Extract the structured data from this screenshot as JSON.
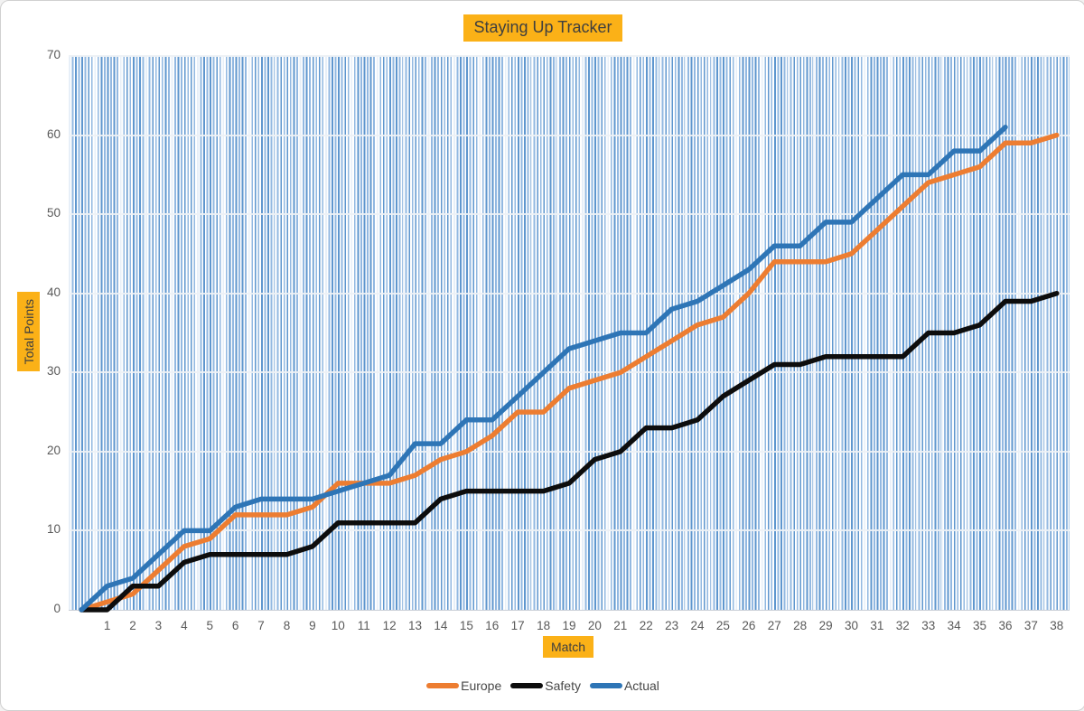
{
  "title": {
    "text": "Staying Up Tracker"
  },
  "colors": {
    "highlight_gold": "#fbb117",
    "title_text": "#3f3f3f",
    "tick_text": "#595959",
    "stripe_dark_blue": "#5e96ce",
    "stripe_light_blue": "#92b8e1",
    "gridline": "#eef1f5",
    "border": "#d0d0d0",
    "europe_orange": "#ED7D31",
    "safety_black": "#0d0d0d",
    "actual_blue": "#2E75B6"
  },
  "legend": {
    "items": [
      {
        "label": "Europe",
        "color": "#ED7D31"
      },
      {
        "label": "Safety",
        "color": "#0d0d0d"
      },
      {
        "label": "Actual",
        "color": "#2E75B6"
      }
    ]
  },
  "chart_data": {
    "type": "line",
    "title": "Staying Up Tracker",
    "xlabel": "Match",
    "ylabel": "Total Points",
    "ylim": [
      0,
      70
    ],
    "y_tick_labels": [
      0,
      10,
      20,
      30,
      40,
      50,
      60,
      70
    ],
    "x_tick_labels": [
      1,
      2,
      3,
      4,
      5,
      6,
      7,
      8,
      9,
      10,
      11,
      12,
      13,
      14,
      15,
      16,
      17,
      18,
      19,
      20,
      21,
      22,
      23,
      24,
      25,
      26,
      27,
      28,
      29,
      30,
      31,
      32,
      33,
      34,
      35,
      36,
      37,
      38
    ],
    "x_categories_note": "series start at an unlabeled match 0 at the left edge of the axis",
    "grid": "horizontal",
    "legend_position": "bottom",
    "series": [
      {
        "name": "Europe",
        "color": "#ED7D31",
        "values": [
          0,
          1,
          2,
          5,
          8,
          9,
          12,
          12,
          12,
          13,
          16,
          16,
          16,
          17,
          19,
          20,
          22,
          25,
          25,
          28,
          29,
          30,
          32,
          34,
          36,
          37,
          40,
          44,
          44,
          44,
          45,
          48,
          51,
          54,
          55,
          56,
          59,
          59,
          60
        ]
      },
      {
        "name": "Safety",
        "color": "#0d0d0d",
        "values": [
          0,
          0,
          3,
          3,
          6,
          7,
          7,
          7,
          7,
          8,
          11,
          11,
          11,
          11,
          14,
          15,
          15,
          15,
          15,
          16,
          19,
          20,
          23,
          23,
          24,
          27,
          29,
          31,
          31,
          32,
          32,
          32,
          32,
          35,
          35,
          36,
          39,
          39,
          40
        ]
      },
      {
        "name": "Actual",
        "color": "#2E75B6",
        "values": [
          0,
          3,
          4,
          7,
          10,
          10,
          13,
          14,
          14,
          14,
          15,
          16,
          17,
          21,
          21,
          24,
          24,
          27,
          30,
          33,
          34,
          35,
          35,
          38,
          39,
          41,
          43,
          46,
          46,
          49,
          49,
          52,
          55,
          55,
          58,
          58,
          61
        ]
      }
    ]
  }
}
